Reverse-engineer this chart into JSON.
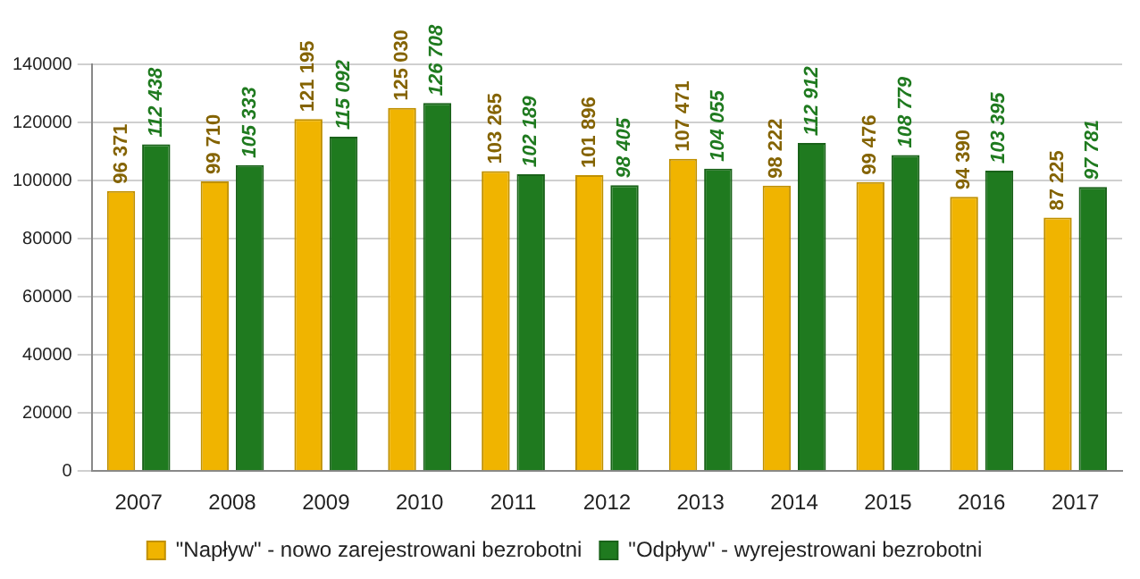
{
  "chart_data": {
    "type": "bar",
    "categories": [
      "2007",
      "2008",
      "2009",
      "2010",
      "2011",
      "2012",
      "2013",
      "2014",
      "2015",
      "2016",
      "2017"
    ],
    "series": [
      {
        "name": "\"Napływ\" - nowo zarejestrowani bezrobotni",
        "color": "#f0b400",
        "values": [
          96371,
          99710,
          121195,
          125030,
          103265,
          101896,
          107471,
          98222,
          99476,
          94390,
          87225
        ],
        "value_labels": [
          "96 371",
          "99 710",
          "121 195",
          "125 030",
          "103 265",
          "101 896",
          "107 471",
          "98 222",
          "99 476",
          "94 390",
          "87 225"
        ]
      },
      {
        "name": "\"Odpływ\" - wyrejestrowani bezrobotni",
        "color": "#1f7a1f",
        "values": [
          112438,
          105333,
          115092,
          126708,
          102189,
          98405,
          104055,
          112912,
          108779,
          103395,
          97781
        ],
        "value_labels": [
          "112 438",
          "105 333",
          "115 092",
          "126 708",
          "102 189",
          "98 405",
          "104 055",
          "112 912",
          "108 779",
          "103 395",
          "97 781"
        ]
      }
    ],
    "ylim": [
      0,
      140000
    ],
    "yticks": [
      0,
      20000,
      40000,
      60000,
      80000,
      100000,
      120000,
      140000
    ],
    "grid": "y",
    "legend": "bottom"
  }
}
